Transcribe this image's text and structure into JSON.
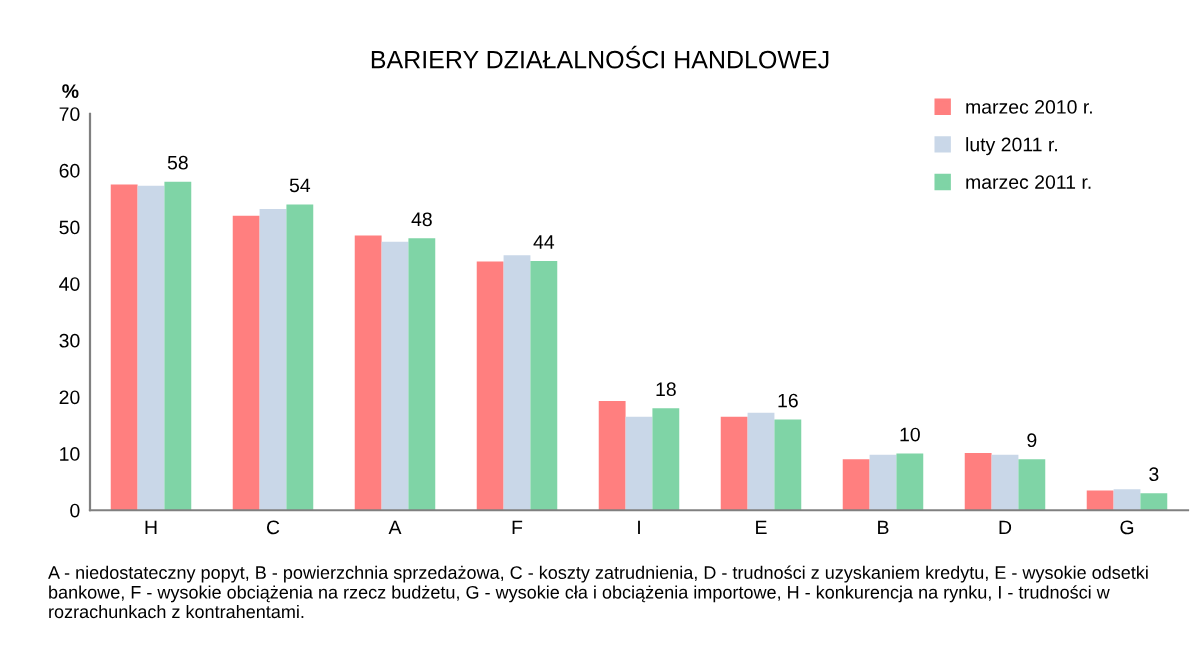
{
  "chart_data": {
    "type": "bar",
    "title": "BARIERY DZIAŁALNOŚCI HANDLOWEJ",
    "ylabel": "%",
    "categories": [
      "H",
      "C",
      "A",
      "F",
      "I",
      "E",
      "B",
      "D",
      "G"
    ],
    "series": [
      {
        "name": "marzec 2010 r.",
        "color": "#ff7f7f",
        "values": [
          57.5,
          52,
          48.5,
          43.9,
          19.3,
          16.5,
          9,
          10.1,
          3.5
        ]
      },
      {
        "name": "luty 2011 r.",
        "color": "#c9d7e8",
        "values": [
          57.3,
          53.2,
          47.4,
          45,
          16.5,
          17.2,
          9.8,
          9.8,
          3.7
        ]
      },
      {
        "name": "marzec 2011 r.",
        "color": "#7fd4a6",
        "values": [
          58,
          54,
          48,
          44,
          18,
          16,
          10,
          9,
          3
        ],
        "value_labels": [
          "58",
          "54",
          "48",
          "44",
          "18",
          "16",
          "10",
          "9",
          "3"
        ]
      }
    ],
    "ylim": [
      0,
      70
    ],
    "yticks": [
      0,
      10,
      20,
      30,
      40,
      50,
      60,
      70
    ],
    "grid": false,
    "legend": "top right",
    "annotations": [
      "A - niedostateczny popyt, B - powierzchnia sprzedażowa, C - koszty zatrudnienia, D - trudności z uzyskaniem kredytu, E - wysokie odsetki bankowe, F - wysokie obciążenia na rzecz budżetu, G - wysokie cła i obciążenia importowe, H - konkurencja na rynku, I - trudności w rozrachunkach z kontrahentami."
    ]
  }
}
